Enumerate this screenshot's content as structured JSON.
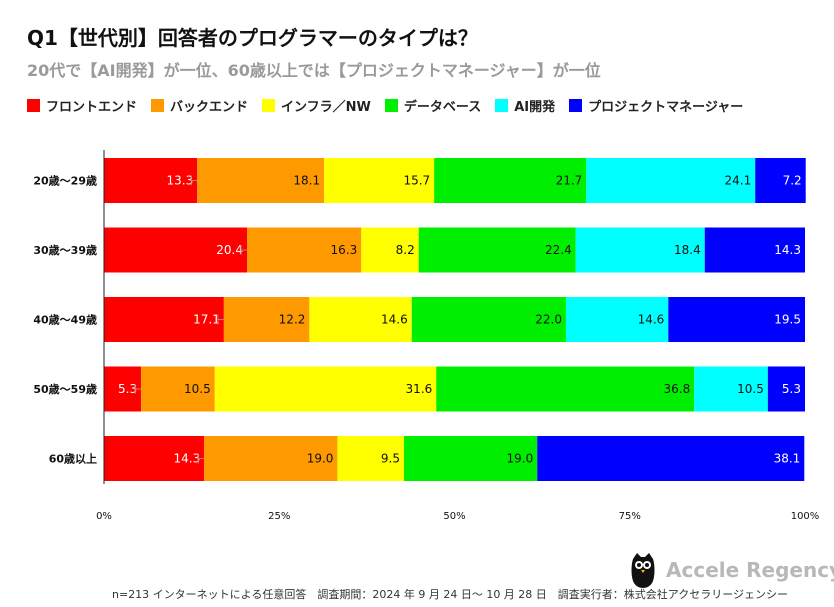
{
  "chart_data": {
    "type": "bar",
    "orientation": "horizontal",
    "stacked": true,
    "title": "Q1【世代別】回答者のプログラマーのタイプは？",
    "subtitle": "20代で【AI開発】が一位、60歳以上では【プロジェクトマネージャー】が一位",
    "categories": [
      "20歳〜29歳",
      "30歳〜39歳",
      "40歳〜49歳",
      "50歳〜59歳",
      "60歳以上"
    ],
    "series": [
      {
        "name": "フロントエンド",
        "color": "#ff0000",
        "label_color": "#ffffff",
        "values": [
          13.3,
          20.4,
          17.1,
          5.3,
          14.3
        ]
      },
      {
        "name": "バックエンド",
        "color": "#ff9900",
        "label_color": "#111111",
        "values": [
          18.1,
          16.3,
          12.2,
          10.5,
          19.0
        ]
      },
      {
        "name": "インフラ／NW",
        "color": "#ffff00",
        "label_color": "#111111",
        "values": [
          15.7,
          8.2,
          14.6,
          31.6,
          9.5
        ]
      },
      {
        "name": "データベース",
        "color": "#00ee00",
        "label_color": "#111111",
        "values": [
          21.7,
          22.4,
          22.0,
          36.8,
          19.0
        ]
      },
      {
        "name": "AI開発",
        "color": "#00ffff",
        "label_color": "#111111",
        "values": [
          24.1,
          18.4,
          14.6,
          10.5,
          0
        ]
      },
      {
        "name": "プロジェクトマネージャー",
        "color": "#0000ff",
        "label_color": "#ffffff",
        "values": [
          7.2,
          14.3,
          19.5,
          5.3,
          38.1
        ]
      }
    ],
    "xlim": [
      0,
      100
    ],
    "xticks": [
      "0%",
      "25%",
      "50%",
      "75%",
      "100%"
    ],
    "xlabel": "",
    "ylabel": "",
    "legend": "top"
  },
  "footer": "n=213 インターネットによる任意回答　調査期間：2024 年 9 月 24 日〜 10 月 28 日　調査実行者：株式会社アクセラリージェンシー",
  "logo": {
    "text": "Accele Regency",
    "icon": "owl-icon"
  }
}
